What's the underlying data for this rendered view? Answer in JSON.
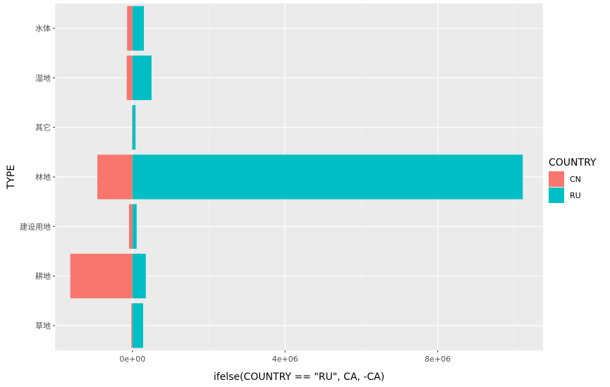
{
  "chart_data": {
    "type": "bar",
    "orientation": "horizontal",
    "categories": [
      "草地",
      "耕地",
      "建设用地",
      "林地",
      "其它",
      "湿地",
      "水体"
    ],
    "series": [
      {
        "name": "CN",
        "color": "#F8766D",
        "values": [
          -30000,
          -1630000,
          -90000,
          -920000,
          -10000,
          -150000,
          -140000
        ]
      },
      {
        "name": "RU",
        "color": "#00BFC4",
        "values": [
          280000,
          350000,
          110000,
          10230000,
          80000,
          500000,
          300000
        ]
      }
    ],
    "xlabel": "ifelse(COUNTRY == \"RU\", CA, -CA)",
    "ylabel": "TYPE",
    "xlim": [
      -2030000,
      10760000
    ],
    "x_ticks": [
      {
        "value": 0,
        "label": "0e+00"
      },
      {
        "value": 4000000,
        "label": "4e+06"
      },
      {
        "value": 8000000,
        "label": "8e+06"
      }
    ],
    "x_minor_ticks": [
      -2000000,
      2000000,
      6000000,
      10000000
    ],
    "grid": true,
    "legend": {
      "title": "COUNTRY",
      "position": "right",
      "entries": [
        "CN",
        "RU"
      ]
    }
  }
}
